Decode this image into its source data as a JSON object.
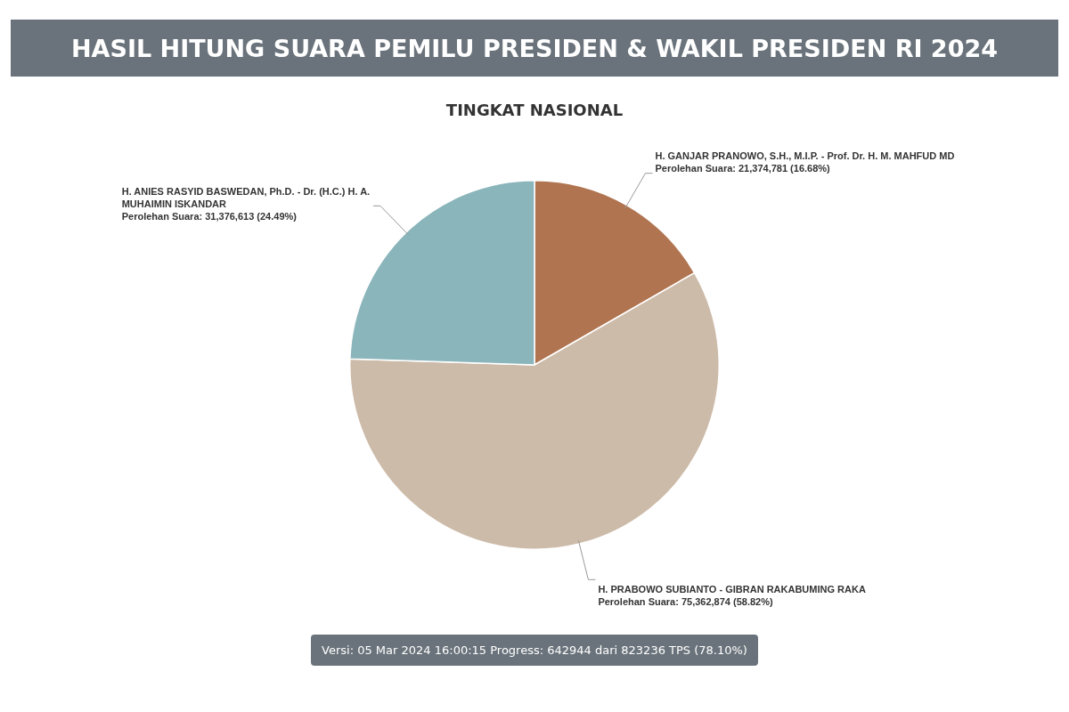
{
  "chart_data": {
    "type": "pie",
    "title": "HASIL HITUNG SUARA PEMILU PRESIDEN & WAKIL PRESIDEN RI 2024",
    "subtitle": "TINGKAT NASIONAL",
    "categories": [
      "H. GANJAR PRANOWO, S.H., M.I.P. - Prof. Dr. H. M. MAHFUD MD",
      "H. PRABOWO SUBIANTO - GIBRAN RAKABUMING RAKA",
      "H. ANIES RASYID BASWEDAN, Ph.D. - Dr. (H.C.) H. A. MUHAIMIN ISKANDAR"
    ],
    "values": [
      21374781,
      75362874,
      31376613
    ],
    "colors": [
      "#b07450",
      "#cdbba9",
      "#8ab5bb"
    ],
    "value_labels": [
      "Perolehan Suara: 21,374,781 (16.68%)",
      "Perolehan Suara: 75,362,874 (58.82%)",
      "Perolehan Suara: 31,376,613 (24.49%)"
    ],
    "annotations": [
      "Versi: 05 Mar 2024 16:00:15 Progress: 642944 dari 823236 TPS (78.10%)"
    ]
  }
}
